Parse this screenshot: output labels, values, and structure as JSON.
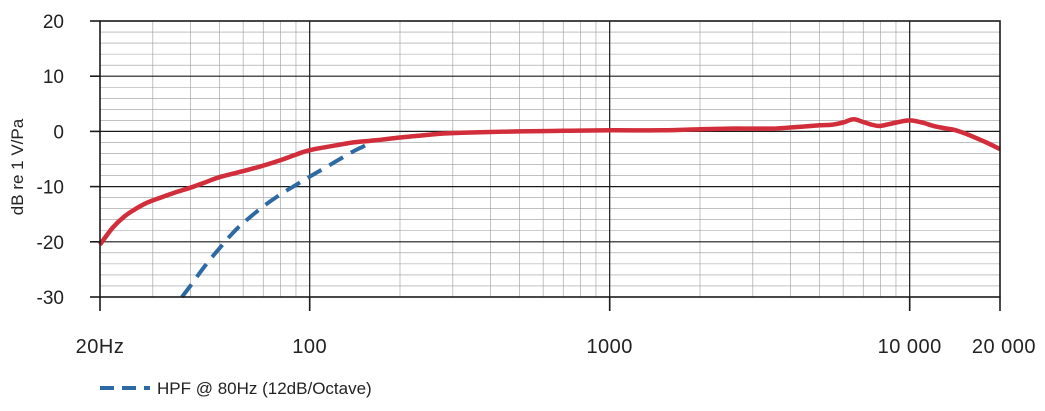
{
  "chart_data": {
    "type": "line",
    "title": "",
    "xlabel": "",
    "ylabel": "dB re 1 V/Pa",
    "x_scale": "log",
    "xlim": [
      20,
      20000
    ],
    "ylim": [
      -30,
      20
    ],
    "yticks": [
      20,
      10,
      0,
      -10,
      -20,
      -30
    ],
    "ytick_labels": [
      "20",
      "10",
      "0",
      "-10",
      "-20",
      "-30"
    ],
    "xticks": [
      20,
      100,
      1000,
      10000,
      20000
    ],
    "xtick_labels": [
      "20Hz",
      "100",
      "1000",
      "10 000",
      "20 000"
    ],
    "grid": true,
    "legend_position": "bottom-left",
    "series": [
      {
        "name": "",
        "color": "#d12d3a",
        "dash": "solid",
        "x": [
          20,
          22,
          24,
          26,
          28,
          30,
          35,
          40,
          45,
          50,
          60,
          70,
          80,
          90,
          100,
          120,
          140,
          160,
          180,
          200,
          230,
          260,
          300,
          400,
          500,
          700,
          1000,
          1500,
          2000,
          2500,
          3000,
          3500,
          4000,
          4500,
          5000,
          5500,
          6000,
          6500,
          7000,
          7500,
          8000,
          9000,
          10000,
          11000,
          12000,
          13000,
          14000,
          15000,
          16000,
          18000,
          20000
        ],
        "y": [
          -20.5,
          -17.5,
          -15.5,
          -14.2,
          -13.2,
          -12.5,
          -11.2,
          -10.2,
          -9.2,
          -8.3,
          -7.2,
          -6.2,
          -5.2,
          -4.2,
          -3.4,
          -2.6,
          -2.0,
          -1.7,
          -1.4,
          -1.1,
          -0.8,
          -0.5,
          -0.3,
          -0.1,
          0.0,
          0.1,
          0.2,
          0.2,
          0.4,
          0.5,
          0.5,
          0.5,
          0.7,
          0.9,
          1.1,
          1.2,
          1.6,
          2.2,
          1.7,
          1.2,
          1.0,
          1.6,
          2.0,
          1.6,
          1.0,
          0.6,
          0.3,
          -0.2,
          -0.8,
          -2.0,
          -3.2
        ]
      },
      {
        "name": "HPF @ 80Hz (12dB/Octave)",
        "color": "#2d6aa3",
        "dash": "dashed",
        "x": [
          37.5,
          40,
          45,
          50,
          55,
          60,
          70,
          80,
          90,
          100,
          110,
          120,
          130,
          140,
          150,
          160
        ],
        "y": [
          -30,
          -28.0,
          -24.2,
          -21.2,
          -18.6,
          -16.6,
          -13.6,
          -11.4,
          -9.7,
          -8.2,
          -6.9,
          -5.7,
          -4.6,
          -3.6,
          -2.8,
          -2.0
        ]
      }
    ]
  }
}
